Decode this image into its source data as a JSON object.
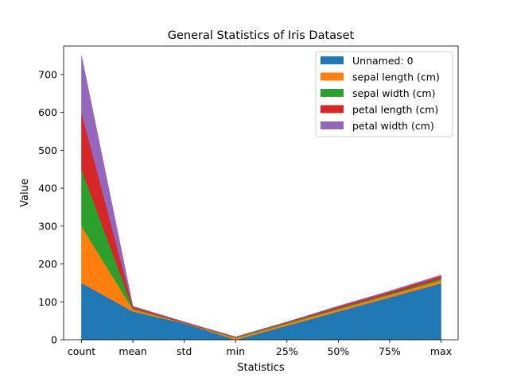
{
  "chart_data": {
    "type": "area",
    "stacked": true,
    "title": "General Statistics of Iris Dataset",
    "xlabel": "Statistics",
    "ylabel": "Value",
    "categories": [
      "count",
      "mean",
      "std",
      "min",
      "25%",
      "50%",
      "75%",
      "max"
    ],
    "ylim": [
      0,
      775
    ],
    "yticks": [
      0,
      100,
      200,
      300,
      400,
      500,
      600,
      700
    ],
    "grid": false,
    "legend_position": "top-right",
    "series": [
      {
        "name": "Unnamed: 0",
        "color": "#1f77b4",
        "values": [
          150,
          74.5,
          43.4,
          0,
          37.25,
          74.5,
          111.75,
          149
        ]
      },
      {
        "name": "sepal length (cm)",
        "color": "#ff7f0e",
        "values": [
          150,
          5.84,
          0.83,
          4.3,
          5.1,
          5.8,
          6.4,
          7.9
        ]
      },
      {
        "name": "sepal width (cm)",
        "color": "#2ca02c",
        "values": [
          150,
          3.06,
          0.44,
          2.0,
          2.8,
          3.0,
          3.3,
          4.4
        ]
      },
      {
        "name": "petal length (cm)",
        "color": "#d62728",
        "values": [
          150,
          3.76,
          1.77,
          1.0,
          1.6,
          4.35,
          5.1,
          6.9
        ]
      },
      {
        "name": "petal width (cm)",
        "color": "#9467bd",
        "values": [
          150,
          1.2,
          0.76,
          0.1,
          0.3,
          1.3,
          1.8,
          2.5
        ]
      }
    ]
  }
}
